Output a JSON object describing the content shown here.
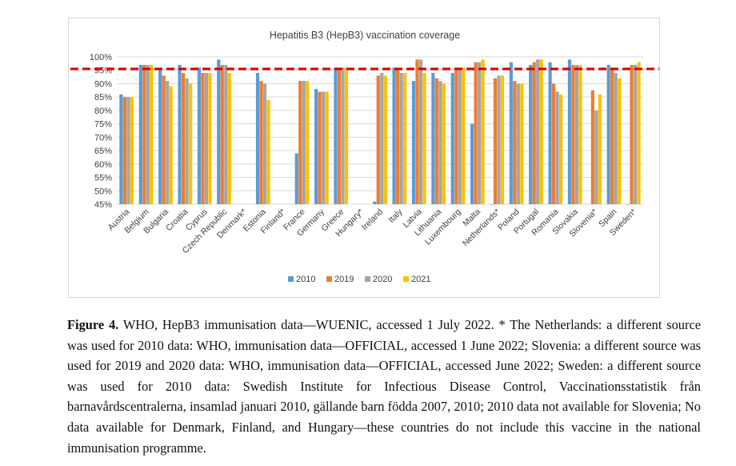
{
  "caption": {
    "label": "Figure 4.",
    "text": " WHO, HepB3 immunisation data—WUENIC, accessed 1 July 2022. * The Netherlands: a different source was used for 2010 data: WHO, immunisation data—OFFICIAL, accessed 1 June 2022; Slovenia: a different source was used for 2019 and 2020 data: WHO, immunisation data—OFFICIAL, accessed June 2022; Sweden: a different source was used for 2010 data: Swedish Institute for Infectious Disease Control, Vaccinationsstatistik från barnavårdscentralerna, insamlad januari 2010, gällande barn födda 2007, 2010; 2010 data not available for Slovenia; No data available for Denmark, Finland, and Hungary—these countries do not include this vaccine in the national immunisation programme."
  },
  "chart_data": {
    "type": "bar",
    "title": "Hepatitis B3 (HepB3) vaccination coverage",
    "categories": [
      "Austria",
      "Belgium",
      "Bulgaria",
      "Croatia",
      "Cyprus",
      "Czech Republic",
      "Denmark*",
      "Estonia",
      "Finland*",
      "France",
      "Germany",
      "Greece",
      "Hungary*",
      "Ireland",
      "Italy",
      "Latvia",
      "Lithuania",
      "Luxembourg",
      "Malta",
      "Netherlands*",
      "Poland",
      "Portugal",
      "Romania",
      "Slovakia",
      "Slovenia*",
      "Spain",
      "Sweden*"
    ],
    "series": [
      {
        "name": "2010",
        "color": "#5b9bd5",
        "values": [
          86,
          97,
          96,
          97,
          96,
          99,
          null,
          94,
          null,
          64,
          88,
          96,
          null,
          46,
          96,
          91,
          94,
          94,
          75,
          45,
          98,
          97,
          98,
          99,
          null,
          97,
          45
        ]
      },
      {
        "name": "2019",
        "color": "#ed7d31",
        "values": [
          85,
          97,
          93,
          94,
          94,
          97,
          null,
          91,
          null,
          91,
          87,
          96,
          null,
          93,
          95,
          99,
          92,
          96,
          98,
          92,
          91,
          98,
          90,
          97,
          87.5,
          96,
          97
        ]
      },
      {
        "name": "2020",
        "color": "#a5a5a5",
        "values": [
          85,
          97,
          91,
          92,
          94,
          97,
          null,
          90,
          null,
          91,
          87,
          96,
          null,
          94,
          94,
          99,
          91,
          96,
          98,
          93,
          90,
          99,
          87,
          97,
          80,
          94,
          97
        ]
      },
      {
        "name": "2021",
        "color": "#ffc000",
        "values": [
          85,
          97,
          89,
          90,
          94,
          94,
          null,
          84,
          null,
          91,
          87,
          96,
          null,
          93,
          94,
          94,
          90,
          96,
          99,
          93,
          90,
          99,
          86,
          97,
          86,
          92,
          98
        ]
      }
    ],
    "reference_line": {
      "value": 95.5,
      "color": "#e00000",
      "style": "dashed"
    },
    "ylim": [
      45,
      100
    ],
    "yticks": [
      "45%",
      "50%",
      "55%",
      "60%",
      "65%",
      "70%",
      "75%",
      "80%",
      "85%",
      "90%",
      "95%",
      "100%"
    ],
    "grid": true,
    "legend_position": "bottom"
  }
}
